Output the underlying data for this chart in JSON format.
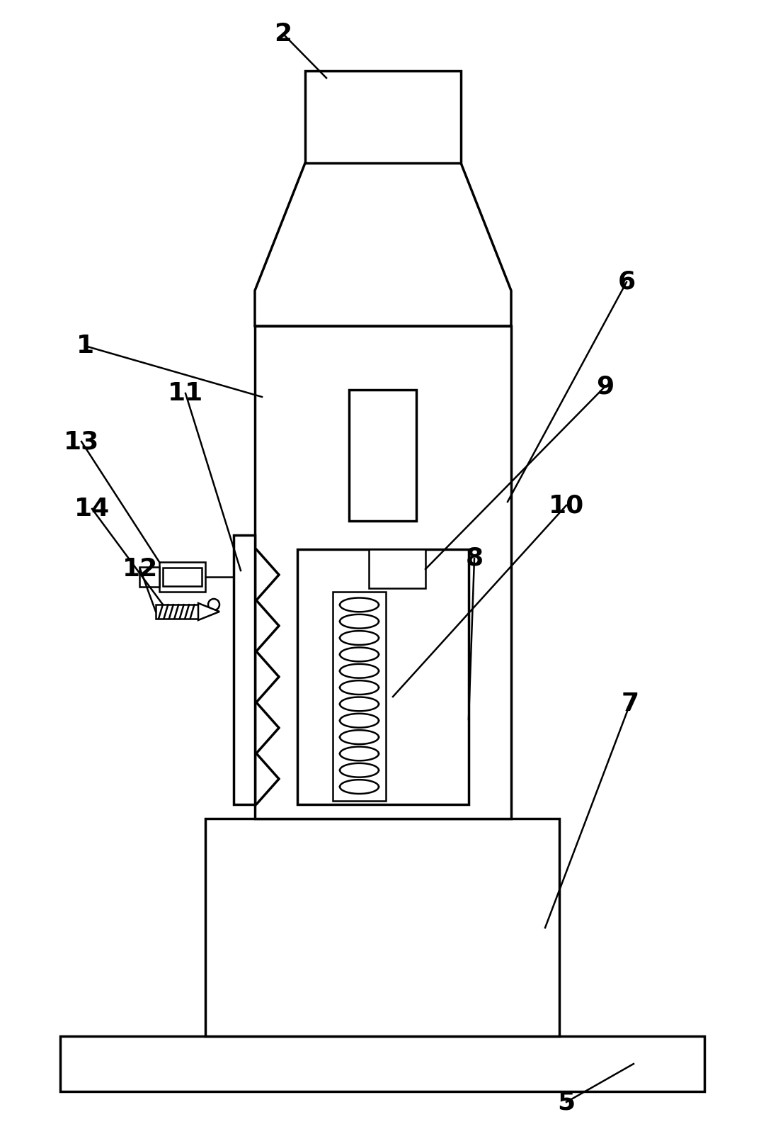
{
  "bg_color": "#ffffff",
  "lc": "#000000",
  "lw": 2.5,
  "lw2": 1.8,
  "fig_w": 10.82,
  "fig_h": 15.93
}
